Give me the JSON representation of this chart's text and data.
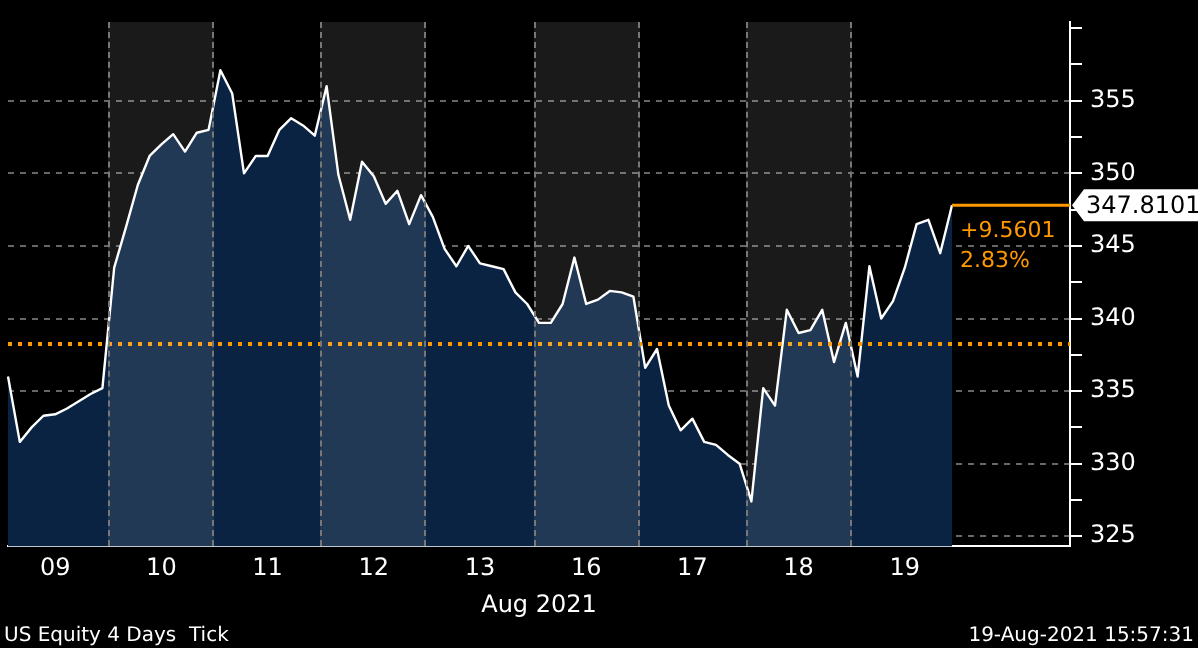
{
  "chart_data": {
    "type": "area",
    "title": "US Equity 4 Days  Tick",
    "subtitle": "19-Aug-2021 15:57:31",
    "xlabel": "Aug 2021",
    "categories": [
      null,
      null,
      null,
      null,
      "09",
      null,
      null,
      null,
      null,
      null,
      null,
      null,
      null,
      "10",
      null,
      null,
      null,
      null,
      null,
      null,
      null,
      null,
      "11",
      null,
      null,
      null,
      null,
      null,
      null,
      null,
      null,
      "12",
      null,
      null,
      null,
      null,
      null,
      null,
      null,
      null,
      "13",
      null,
      null,
      null,
      null,
      null,
      null,
      null,
      null,
      "16",
      null,
      null,
      null,
      null,
      null,
      null,
      null,
      null,
      "17",
      null,
      null,
      null,
      null,
      null,
      null,
      null,
      null,
      "18",
      null,
      null,
      null,
      null,
      null,
      null,
      null,
      null,
      "19",
      null,
      null,
      null,
      null,
      null,
      null,
      null,
      null,
      null,
      null,
      null,
      null,
      null,
      null
    ],
    "series": [
      {
        "color": "#ffffff",
        "values": [
          336.0,
          331.5,
          332.5,
          333.3,
          333.4,
          333.8,
          334.3,
          334.8,
          335.2,
          343.5,
          346.3,
          349.2,
          351.2,
          352.0,
          352.7,
          351.5,
          352.8,
          353.0,
          357.1,
          355.5,
          350.0,
          351.2,
          351.2,
          353.0,
          353.8,
          353.3,
          352.6,
          356.0,
          349.9,
          346.8,
          350.8,
          349.8,
          347.9,
          348.8,
          346.5,
          348.5,
          347.0,
          344.8,
          343.6,
          345.0,
          343.8,
          343.6,
          343.4,
          341.8,
          341.0,
          339.7,
          339.7,
          341.0,
          344.2,
          341.0,
          341.3,
          341.9,
          341.8,
          341.5,
          336.6,
          337.9,
          334.0,
          332.3,
          333.1,
          331.5,
          331.3,
          330.6,
          330.0,
          327.4,
          335.2,
          334.0,
          340.6,
          339.0,
          339.2,
          340.6,
          337.0,
          339.7,
          336.0,
          343.6,
          340.0,
          341.2,
          343.5,
          346.5,
          346.8,
          344.5,
          347.8,
          null,
          null,
          null,
          null,
          null,
          null,
          null,
          null,
          null,
          null
        ]
      }
    ],
    "ylim": [
      324.3,
      360.4
    ],
    "yticks": [
      325,
      {
        "value": 327.5,
        "label": null
      },
      330,
      {
        "value": 332.5,
        "label": null
      },
      335,
      {
        "value": 337.5,
        "label": null
      },
      340,
      {
        "value": 342.5,
        "label": null
      },
      345,
      {
        "value": 347.5,
        "label": null
      },
      350,
      {
        "value": 352.5,
        "label": null
      },
      355,
      {
        "value": 357.5,
        "label": null
      },
      {
        "value": 360,
        "label": null
      }
    ],
    "grid": "y",
    "legend": false,
    "marker": "none",
    "ref_lines": [
      {
        "axis": "y",
        "value": 338.25,
        "color": "#ff9900",
        "line_style": "dotted"
      },
      {
        "axis": "y",
        "value": 347.8101,
        "label": "347.8101",
        "color": "#ff9900",
        "line_style": "solid"
      }
    ],
    "annotations": [
      "+9.5601",
      "2.83%"
    ]
  }
}
